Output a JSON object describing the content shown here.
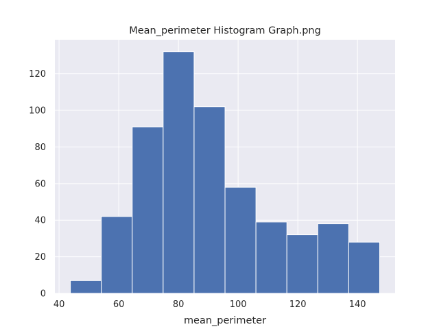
{
  "chart_data": {
    "type": "bar",
    "title": "Mean_perimeter Histogram Graph.png",
    "xlabel": "mean_perimeter",
    "ylabel": "",
    "bins": [
      {
        "start": 43.79,
        "end": 54.15,
        "count": 7
      },
      {
        "start": 54.15,
        "end": 64.52,
        "count": 42
      },
      {
        "start": 64.52,
        "end": 74.88,
        "count": 91
      },
      {
        "start": 74.88,
        "end": 85.24,
        "count": 132
      },
      {
        "start": 85.24,
        "end": 95.61,
        "count": 102
      },
      {
        "start": 95.61,
        "end": 105.97,
        "count": 58
      },
      {
        "start": 105.97,
        "end": 116.34,
        "count": 39
      },
      {
        "start": 116.34,
        "end": 126.7,
        "count": 32
      },
      {
        "start": 126.7,
        "end": 137.06,
        "count": 38
      },
      {
        "start": 137.06,
        "end": 147.43,
        "count": 28
      }
    ],
    "xlim": [
      38.6,
      152.6
    ],
    "ylim": [
      0,
      138.6
    ],
    "xticks": [
      40,
      60,
      80,
      100,
      120,
      140
    ],
    "yticks": [
      0,
      20,
      40,
      60,
      80,
      100,
      120
    ],
    "grid": true,
    "colors": {
      "bar": "#4c72b0",
      "background": "#eaeaf2",
      "grid": "#ffffff",
      "text": "#262626"
    }
  }
}
